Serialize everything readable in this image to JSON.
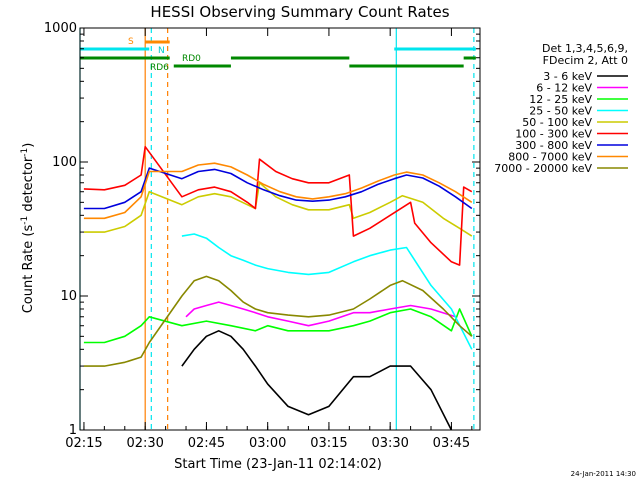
{
  "chart_data": {
    "type": "line",
    "title": "HESSI Observing Summary Count Rates",
    "xlabel": "Start Time (23-Jan-11 02:14:02)",
    "ylabel_prefix": "Count Rate (s",
    "ylabel_sup1": "-1",
    "ylabel_mid": " detector",
    "ylabel_sup2": "-1",
    "ylabel_suffix": ")",
    "ylabel": "Count Rate (s-1 detector-1)",
    "yscale": "log",
    "ylim": [
      1,
      1000
    ],
    "xlim": [
      "02:14:02",
      "03:52:00"
    ],
    "x_ticks": [
      "02:15",
      "02:30",
      "02:45",
      "03:00",
      "03:15",
      "03:30",
      "03:45"
    ],
    "y_ticks": [
      "1",
      "10",
      "100",
      "1000"
    ],
    "legend_header": [
      "Det 1,3,4,5,6,9,",
      "FDecim 2, Att 0"
    ],
    "grid": false,
    "legend": "right",
    "timestamp": "24-Jan-2011 14:30",
    "annotations": {
      "s": "S",
      "n": "N",
      "rd0": "RD0",
      "rd6": "RD6"
    },
    "vlines": [
      {
        "time": "02:14:02",
        "style": "solid",
        "color": "#00e5ee"
      },
      {
        "time": "02:30:00",
        "style": "solid",
        "color": "#ff7f00"
      },
      {
        "time": "02:31:30",
        "style": "dashed",
        "color": "#00e5ee"
      },
      {
        "time": "02:35:30",
        "style": "dashed",
        "color": "#ff7f00"
      },
      {
        "time": "03:31:30",
        "style": "solid",
        "color": "#00e5ee"
      },
      {
        "time": "03:50:30",
        "style": "dashed",
        "color": "#00e5ee"
      }
    ],
    "flag_bars": {
      "saa": [
        [
          "02:30",
          "02:36"
        ]
      ],
      "night": [
        [
          "02:14",
          "02:31"
        ],
        [
          "03:31",
          "03:51"
        ]
      ],
      "rd0": [
        [
          "02:14",
          "02:36"
        ],
        [
          "02:51",
          "03:20"
        ],
        [
          "03:48",
          "03:51"
        ]
      ],
      "rd6": [
        [
          "02:37",
          "02:51"
        ],
        [
          "03:20",
          "03:48"
        ]
      ]
    },
    "series": [
      {
        "name": "3 - 6 keV",
        "color": "#000000",
        "x": [
          "02:39",
          "02:42",
          "02:45",
          "02:48",
          "02:51",
          "02:54",
          "02:57",
          "03:00",
          "03:05",
          "03:10",
          "03:15",
          "03:21",
          "03:25",
          "03:30",
          "03:35",
          "03:40",
          "03:45"
        ],
        "values": [
          3,
          4,
          5,
          5.5,
          5,
          4,
          3,
          2.2,
          1.5,
          1.3,
          1.5,
          2.5,
          2.5,
          3,
          3,
          2,
          1
        ]
      },
      {
        "name": "6 - 12 keV",
        "color": "#ff00ff",
        "x": [
          "02:40",
          "02:42",
          "02:45",
          "02:48",
          "02:51",
          "02:54",
          "02:57",
          "03:00",
          "03:05",
          "03:10",
          "03:15",
          "03:21",
          "03:25",
          "03:30",
          "03:35",
          "03:40",
          "03:46"
        ],
        "values": [
          7,
          8,
          8.5,
          9,
          8.5,
          8,
          7.5,
          7,
          6.5,
          6,
          6.5,
          7.5,
          7.5,
          8,
          8.5,
          8,
          7
        ]
      },
      {
        "name": "12 - 25 keV",
        "color": "#00ff00",
        "x": [
          "02:15",
          "02:20",
          "02:25",
          "02:29",
          "02:31",
          "02:39",
          "02:45",
          "02:51",
          "02:57",
          "03:00",
          "03:05",
          "03:10",
          "03:15",
          "03:21",
          "03:25",
          "03:30",
          "03:35",
          "03:40",
          "03:45",
          "03:47",
          "03:50"
        ],
        "values": [
          4.5,
          4.5,
          5,
          6,
          7,
          6,
          6.5,
          6,
          5.5,
          6,
          5.5,
          5.5,
          5.5,
          6,
          6.5,
          7.5,
          8,
          7,
          5.5,
          8,
          5
        ]
      },
      {
        "name": "25 - 50 keV",
        "color": "#00ffff",
        "x": [
          "02:39",
          "02:42",
          "02:45",
          "02:48",
          "02:51",
          "02:54",
          "02:57",
          "03:00",
          "03:05",
          "03:10",
          "03:15",
          "03:21",
          "03:25",
          "03:30",
          "03:34",
          "03:40",
          "03:45",
          "03:50"
        ],
        "values": [
          28,
          29,
          27,
          23,
          20,
          18.5,
          17,
          16,
          15,
          14.5,
          15,
          18,
          20,
          22,
          23,
          12,
          8,
          4
        ]
      },
      {
        "name": "50 - 100 keV",
        "color": "#cccc00",
        "x": [
          "02:15",
          "02:20",
          "02:25",
          "02:29",
          "02:31",
          "02:39",
          "02:43",
          "02:47",
          "02:51",
          "02:55",
          "02:57",
          "02:58",
          "03:02",
          "03:06",
          "03:10",
          "03:15",
          "03:20",
          "03:21",
          "03:25",
          "03:30",
          "03:33",
          "03:38",
          "03:43",
          "03:47",
          "03:50"
        ],
        "values": [
          30,
          30,
          33,
          40,
          60,
          48,
          55,
          58,
          55,
          48,
          45,
          70,
          55,
          48,
          44,
          44,
          48,
          38,
          42,
          50,
          56,
          50,
          38,
          32,
          28
        ]
      },
      {
        "name": "100 - 300 keV",
        "color": "#ff0000",
        "x": [
          "02:15",
          "02:20",
          "02:25",
          "02:29",
          "02:30",
          "02:39",
          "02:43",
          "02:47",
          "02:51",
          "02:55",
          "02:57",
          "02:58",
          "03:02",
          "03:06",
          "03:10",
          "03:15",
          "03:20",
          "03:21",
          "03:25",
          "03:30",
          "03:35",
          "03:36",
          "03:40",
          "03:45",
          "03:47",
          "03:48",
          "03:50"
        ],
        "values": [
          63,
          62,
          67,
          80,
          130,
          55,
          62,
          65,
          60,
          50,
          45,
          105,
          85,
          75,
          70,
          70,
          80,
          28,
          32,
          40,
          50,
          35,
          25,
          18,
          17,
          65,
          60
        ]
      },
      {
        "name": "300 - 800 keV",
        "color": "#0000dd",
        "x": [
          "02:15",
          "02:20",
          "02:25",
          "02:29",
          "02:31",
          "02:39",
          "02:43",
          "02:47",
          "02:51",
          "02:55",
          "02:59",
          "03:03",
          "03:07",
          "03:11",
          "03:15",
          "03:19",
          "03:23",
          "03:27",
          "03:31",
          "03:34",
          "03:38",
          "03:42",
          "03:46",
          "03:50"
        ],
        "values": [
          45,
          45,
          50,
          60,
          90,
          75,
          85,
          88,
          82,
          70,
          62,
          56,
          52,
          51,
          52,
          55,
          60,
          68,
          75,
          80,
          76,
          66,
          55,
          45
        ]
      },
      {
        "name": "800 - 7000 keV",
        "color": "#ff8800",
        "x": [
          "02:15",
          "02:20",
          "02:25",
          "02:29",
          "02:31",
          "02:39",
          "02:43",
          "02:47",
          "02:51",
          "02:55",
          "02:59",
          "03:03",
          "03:07",
          "03:11",
          "03:15",
          "03:19",
          "03:23",
          "03:27",
          "03:31",
          "03:34",
          "03:38",
          "03:42",
          "03:46",
          "03:50"
        ],
        "values": [
          38,
          38,
          42,
          55,
          85,
          85,
          95,
          98,
          92,
          80,
          68,
          60,
          55,
          53,
          55,
          58,
          64,
          72,
          80,
          84,
          80,
          70,
          60,
          50
        ]
      },
      {
        "name": "7000 - 20000 keV",
        "color": "#888800",
        "x": [
          "02:15",
          "02:20",
          "02:25",
          "02:29",
          "02:31",
          "02:39",
          "02:42",
          "02:45",
          "02:48",
          "02:51",
          "02:54",
          "02:57",
          "03:00",
          "03:05",
          "03:10",
          "03:15",
          "03:21",
          "03:25",
          "03:30",
          "03:33",
          "03:38",
          "03:43",
          "03:47",
          "03:50"
        ],
        "values": [
          3,
          3,
          3.2,
          3.5,
          4.5,
          10,
          13,
          14,
          13,
          11,
          9,
          8,
          7.5,
          7.2,
          7,
          7.2,
          8,
          9.5,
          12,
          13,
          11,
          8,
          6,
          5
        ]
      }
    ]
  }
}
